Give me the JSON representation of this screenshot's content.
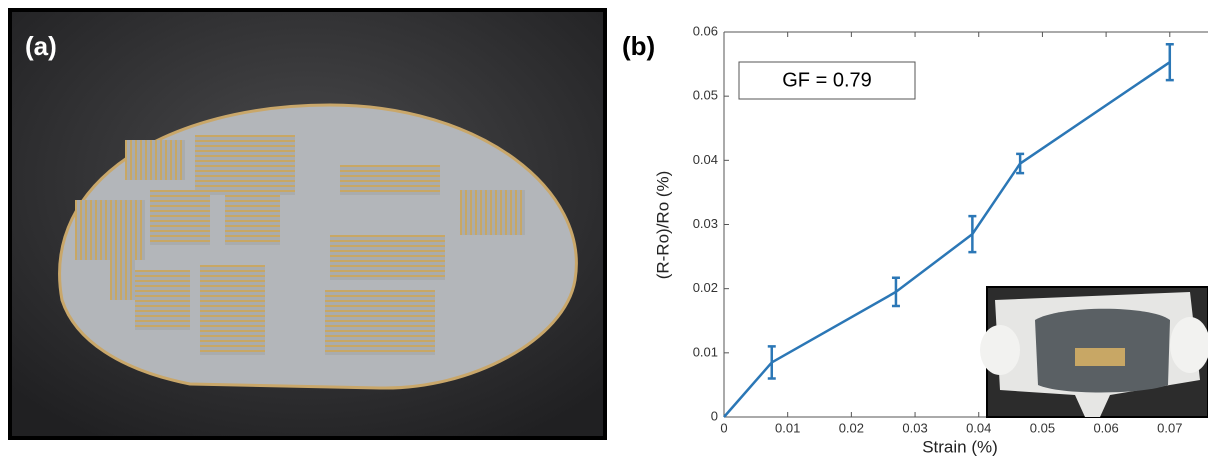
{
  "panel_labels": [
    "(a)",
    "(b)"
  ],
  "chart_data": {
    "type": "line",
    "x_label": "Strain (%)",
    "y_label": "(R-Ro)/Ro (%)",
    "annotation": "GF = 0.79",
    "x": [
      0,
      0.0075,
      0.027,
      0.039,
      0.0465,
      0.07
    ],
    "values": [
      0,
      0.0085,
      0.0195,
      0.0285,
      0.0395,
      0.0553
    ],
    "errors": [
      null,
      0.0025,
      0.0022,
      0.0028,
      0.0015,
      0.0028
    ],
    "color": "#2b77b6",
    "xlim": [
      0,
      0.076
    ],
    "ylim": [
      0,
      0.06
    ],
    "xticks": [
      0,
      0.01,
      0.02,
      0.03,
      0.04,
      0.05,
      0.06,
      0.07
    ],
    "yticks": [
      0,
      0.01,
      0.02,
      0.03,
      0.04,
      0.05,
      0.06
    ]
  }
}
